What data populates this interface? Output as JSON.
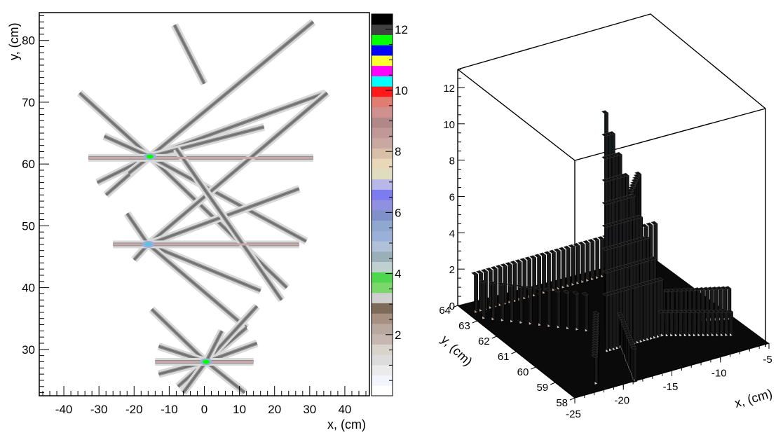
{
  "chart_data": [
    {
      "type": "heatmap",
      "xlabel": "x,  (cm)",
      "ylabel": "y,  (cm)",
      "xlim": [
        -47,
        47
      ],
      "ylim": [
        22.5,
        84.5
      ],
      "x_ticks": [
        -40,
        -30,
        -20,
        -10,
        0,
        10,
        20,
        30,
        40
      ],
      "y_ticks": [
        30,
        40,
        50,
        60,
        70,
        80
      ],
      "colorbar": {
        "range": [
          0,
          12.5
        ],
        "ticks": [
          2,
          4,
          6,
          8,
          10,
          12
        ],
        "colors": [
          "#ffffff",
          "#f4f4ff",
          "#ebebeb",
          "#dcdcdc",
          "#d8d4cc",
          "#c6b8b0",
          "#b8a8a0",
          "#a89080",
          "#7e6a58",
          "#cfcfcf",
          "#7ad86a",
          "#4ed64e",
          "#c0d0d0",
          "#9ab0b8",
          "#b0c0d8",
          "#9ab0d8",
          "#8fa8d0",
          "#8090c8",
          "#9090e0",
          "#7c7cf0",
          "#b8b8e8",
          "#e0dcc0",
          "#e8d8b8",
          "#d8c0a8",
          "#c8a8a0",
          "#c09898",
          "#b08888",
          "#d09090",
          "#e07c70",
          "#ff1a1a",
          "#00ffff",
          "#ff00ff",
          "#ffff30",
          "#0000ff",
          "#00ff00",
          "#404040",
          "#000000"
        ]
      },
      "tracks": [
        {
          "from": [
            -35.5,
            71.5
          ],
          "to": [
            -15.5,
            61.2
          ]
        },
        {
          "from": [
            -15.5,
            61.2
          ],
          "to": [
            23.5,
            40.0
          ]
        },
        {
          "from": [
            -28.5,
            64.5
          ],
          "to": [
            -15.5,
            61.2
          ]
        },
        {
          "from": [
            -15.5,
            61.2
          ],
          "to": [
            29.0,
            47.5
          ]
        },
        {
          "from": [
            -30.5,
            57.0
          ],
          "to": [
            -15.5,
            61.2
          ]
        },
        {
          "from": [
            -15.5,
            61.2
          ],
          "to": [
            34.5,
            71.5
          ]
        },
        {
          "from": [
            -28.0,
            55.0
          ],
          "to": [
            -15.5,
            61.2
          ]
        },
        {
          "from": [
            -15.5,
            61.2
          ],
          "to": [
            31.0,
            83.0
          ]
        },
        {
          "from": [
            -21.5,
            58.5
          ],
          "to": [
            -15.5,
            61.2
          ]
        },
        {
          "from": [
            -15.5,
            61.2
          ],
          "to": [
            17.0,
            66.0
          ]
        },
        {
          "from": [
            -14.0,
            61.0
          ],
          "to": [
            31.0,
            61.0
          ]
        },
        {
          "from": [
            -33.0,
            61.0
          ],
          "to": [
            -14.0,
            61.0
          ]
        },
        {
          "from": [
            -16.0,
            47.0
          ],
          "to": [
            35.0,
            71.5
          ]
        },
        {
          "from": [
            -16.0,
            47.0
          ],
          "to": [
            16.0,
            39.5
          ]
        },
        {
          "from": [
            -16.0,
            47.0
          ],
          "to": [
            27.0,
            56.0
          ]
        },
        {
          "from": [
            -16.0,
            47.0
          ],
          "to": [
            12.0,
            33.5
          ]
        },
        {
          "from": [
            -22.0,
            52.0
          ],
          "to": [
            -16.0,
            47.0
          ]
        },
        {
          "from": [
            -20.0,
            44.5
          ],
          "to": [
            -16.0,
            47.0
          ]
        },
        {
          "from": [
            -26.0,
            47.0
          ],
          "to": [
            27.0,
            47.0
          ]
        },
        {
          "from": [
            -8.0,
            62.5
          ],
          "to": [
            22.0,
            38.0
          ]
        },
        {
          "from": [
            -15.0,
            36.5
          ],
          "to": [
            0.5,
            28.0
          ]
        },
        {
          "from": [
            0.5,
            28.0
          ],
          "to": [
            12.0,
            33.5
          ]
        },
        {
          "from": [
            -13.0,
            30.5
          ],
          "to": [
            0.5,
            28.0
          ]
        },
        {
          "from": [
            0.5,
            28.0
          ],
          "to": [
            15.0,
            37.0
          ]
        },
        {
          "from": [
            -7.5,
            24.0
          ],
          "to": [
            0.5,
            28.0
          ]
        },
        {
          "from": [
            0.5,
            28.0
          ],
          "to": [
            11.5,
            23.0
          ]
        },
        {
          "from": [
            -13.0,
            26.0
          ],
          "to": [
            0.5,
            28.0
          ]
        },
        {
          "from": [
            0.5,
            28.0
          ],
          "to": [
            15.0,
            31.0
          ]
        },
        {
          "from": [
            -14.0,
            28.0
          ],
          "to": [
            14.0,
            28.0
          ]
        },
        {
          "from": [
            -6.0,
            23.0
          ],
          "to": [
            0.5,
            28.0
          ]
        },
        {
          "from": [
            0.5,
            28.0
          ],
          "to": [
            5.0,
            33.0
          ]
        },
        {
          "from": [
            -8.5,
            82.5
          ],
          "to": [
            0.0,
            73.0
          ]
        },
        {
          "from": [
            0.5,
            28.0
          ],
          "to": [
            -14.0,
            28.0
          ]
        }
      ],
      "hot_spots": [
        {
          "x": -15.5,
          "y": 61.2,
          "value": 11.5
        },
        {
          "x": -16.0,
          "y": 47.0,
          "value": 6.5
        },
        {
          "x": 0.5,
          "y": 28.0,
          "value": 12.0
        }
      ]
    },
    {
      "type": "3d-lego",
      "xlabel": "x,  (cm)",
      "ylabel": "y,  (cm)",
      "xlim": [
        -25,
        -5
      ],
      "ylim": [
        58,
        64
      ],
      "zlim": [
        0,
        13
      ],
      "x_ticks": [
        -25,
        -20,
        -15,
        -10,
        -5
      ],
      "y_ticks": [
        58,
        59,
        60,
        61,
        62,
        63,
        64
      ],
      "z_ticks": [
        0,
        2,
        4,
        6,
        8,
        10,
        12
      ],
      "peak": {
        "x": -15.5,
        "y": 61.2,
        "value": 11.5
      },
      "ridges": [
        {
          "dir": "along-x",
          "height": 2.0
        },
        {
          "dir": "upper-right",
          "height": 4.0
        },
        {
          "dir": "left",
          "height": 2.0
        },
        {
          "dir": "lower-left",
          "height": 1.5
        }
      ]
    }
  ]
}
